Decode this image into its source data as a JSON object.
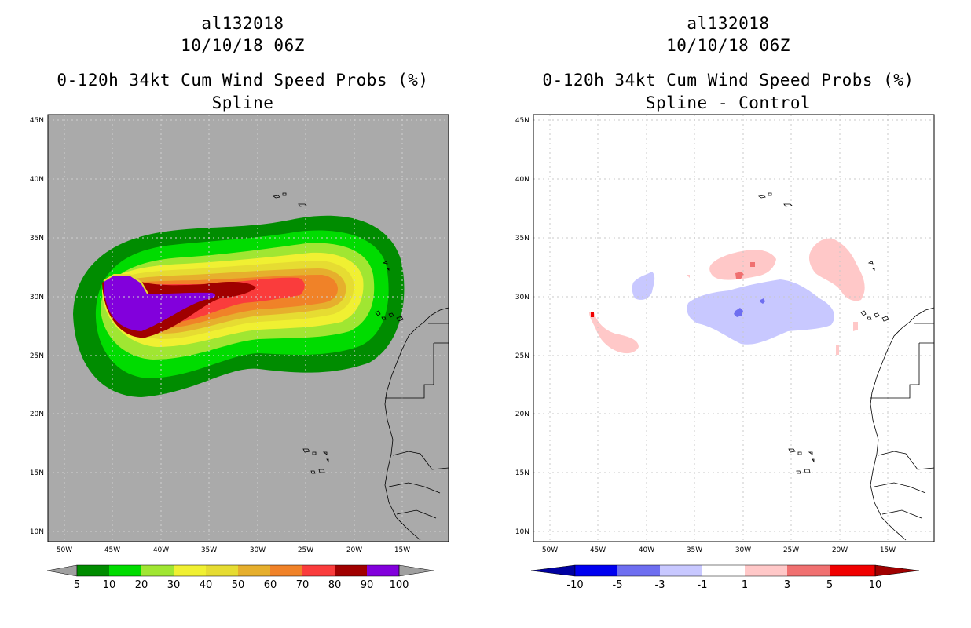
{
  "left_panel": {
    "storm_id": "al132018",
    "datetime": "10/10/18 06Z",
    "product": "0-120h 34kt Cum Wind Speed Probs (%)",
    "subtitle": "Spline",
    "background_color": "#aaaaaa",
    "colorbar": {
      "labels": [
        "5",
        "10",
        "20",
        "30",
        "40",
        "50",
        "60",
        "70",
        "80",
        "90",
        "100"
      ],
      "colors": [
        "#008c00",
        "#00dc00",
        "#a0e632",
        "#f0f032",
        "#e6dc32",
        "#e6af2d",
        "#f08228",
        "#fa3c3c",
        "#a00000",
        "#8200dc"
      ]
    }
  },
  "right_panel": {
    "storm_id": "al132018",
    "datetime": "10/10/18 06Z",
    "product": "0-120h 34kt Cum Wind Speed Probs (%)",
    "subtitle": "Spline - Control",
    "background_color": "#ffffff",
    "colorbar": {
      "labels": [
        "-10",
        "-5",
        "-3",
        "-1",
        "1",
        "3",
        "5",
        "10"
      ],
      "colors": [
        "#0000a0",
        "#0000f0",
        "#6e6ef0",
        "#c8c8ff",
        "#ffffff",
        "#ffc8c8",
        "#f07070",
        "#f00000",
        "#a00000"
      ]
    }
  },
  "axes": {
    "lat_labels": [
      "45N",
      "40N",
      "35N",
      "30N",
      "25N",
      "20N",
      "15N",
      "10N"
    ],
    "lon_labels": [
      "50W",
      "45W",
      "40W",
      "35W",
      "30W",
      "25W",
      "20W",
      "15W"
    ]
  }
}
